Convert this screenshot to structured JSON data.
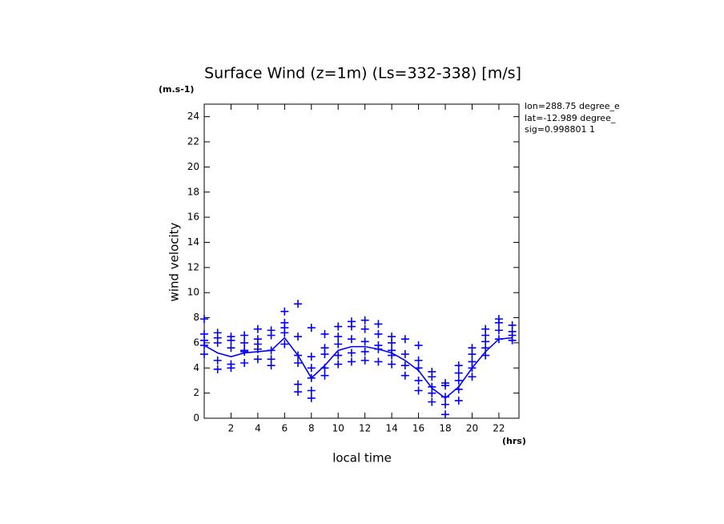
{
  "chart_data": {
    "type": "line-scatter",
    "title": "Surface Wind (z=1m) (Ls=332-338) [m/s]",
    "y_unit": "(m.s-1)",
    "x_unit": "(hrs)",
    "ylabel": "wind velocity",
    "xlabel": "local time",
    "info": [
      "lon=288.75 degree_e",
      "lat=-12.989 degree_",
      "sig=0.998801 1"
    ],
    "color": "#0000ff",
    "xlim": [
      0,
      23.5
    ],
    "ylim": [
      0,
      25
    ],
    "xticks": [
      2,
      4,
      6,
      8,
      10,
      12,
      14,
      16,
      18,
      20,
      22
    ],
    "yticks": [
      0,
      2,
      4,
      6,
      8,
      10,
      12,
      14,
      16,
      18,
      20,
      22,
      24
    ],
    "x": [
      0,
      1,
      2,
      3,
      4,
      5,
      6,
      7,
      8,
      9,
      10,
      11,
      12,
      13,
      14,
      15,
      16,
      17,
      18,
      19,
      20,
      21,
      22,
      23
    ],
    "values": [
      5.8,
      5.2,
      4.9,
      5.2,
      5.3,
      5.4,
      6.4,
      5.0,
      3.2,
      4.2,
      5.4,
      5.7,
      5.7,
      5.5,
      5.2,
      4.6,
      3.8,
      2.4,
      1.6,
      2.5,
      4.0,
      5.3,
      6.3,
      6.4
    ],
    "scatter": {
      "x": [
        0,
        0,
        0,
        0,
        0,
        1,
        1,
        1,
        1,
        1,
        2,
        2,
        2,
        2,
        2,
        3,
        3,
        3,
        3,
        3,
        4,
        4,
        4,
        4,
        4,
        5,
        5,
        5,
        5,
        5,
        6,
        6,
        6,
        6,
        6,
        7,
        7,
        7,
        7,
        7,
        7,
        8,
        8,
        8,
        8,
        8,
        8,
        9,
        9,
        9,
        9,
        9,
        10,
        10,
        10,
        10,
        10,
        11,
        11,
        11,
        11,
        11,
        12,
        12,
        12,
        12,
        12,
        13,
        13,
        13,
        13,
        13,
        14,
        14,
        14,
        14,
        14,
        15,
        15,
        15,
        15,
        16,
        16,
        16,
        16,
        16,
        17,
        17,
        17,
        17,
        17,
        18,
        18,
        18,
        18,
        18,
        19,
        19,
        19,
        19,
        19,
        20,
        20,
        20,
        20,
        20,
        21,
        21,
        21,
        21,
        21,
        22,
        22,
        22,
        22,
        23,
        23,
        23,
        23
      ],
      "y": [
        7.9,
        6.7,
        6.2,
        5.8,
        5.1,
        6.8,
        6.4,
        6.0,
        4.6,
        3.9,
        6.5,
        6.2,
        5.6,
        4.3,
        4.0,
        6.6,
        6.0,
        5.4,
        5.3,
        4.4,
        7.1,
        6.3,
        5.9,
        5.5,
        4.7,
        7.0,
        6.6,
        5.4,
        4.7,
        4.2,
        8.5,
        7.6,
        7.2,
        6.8,
        5.9,
        9.1,
        6.5,
        5.0,
        4.4,
        2.7,
        2.1,
        7.2,
        4.9,
        4.0,
        3.2,
        2.2,
        1.6,
        6.7,
        5.6,
        5.1,
        4.0,
        3.4,
        7.3,
        6.5,
        5.9,
        5.0,
        4.3,
        7.7,
        7.3,
        6.3,
        5.2,
        4.5,
        7.8,
        7.1,
        6.1,
        5.3,
        4.6,
        7.5,
        6.7,
        5.8,
        5.5,
        4.5,
        6.5,
        6.0,
        5.4,
        5.0,
        4.3,
        6.3,
        5.1,
        4.2,
        3.4,
        5.8,
        4.6,
        4.0,
        3.0,
        2.2,
        3.7,
        3.3,
        2.5,
        2.0,
        1.3,
        2.8,
        2.6,
        1.7,
        1.1,
        0.3,
        4.2,
        3.6,
        3.0,
        2.3,
        1.4,
        5.6,
        5.1,
        4.5,
        4.0,
        3.3,
        7.1,
        6.6,
        6.1,
        5.6,
        5.0,
        7.9,
        7.6,
        7.0,
        6.3,
        7.4,
        6.9,
        6.6,
        6.2
      ]
    }
  }
}
